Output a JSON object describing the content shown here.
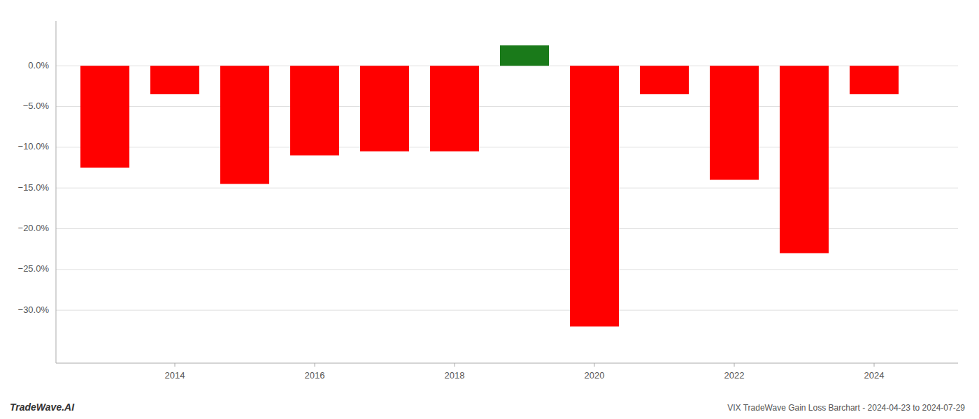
{
  "chart_data": {
    "type": "bar",
    "title": "VIX TradeWave Gain Loss Barchart - 2024-04-23 to 2024-07-29",
    "annotations": [
      "TradeWave.AI"
    ],
    "x": [
      2013,
      2014,
      2015,
      2016,
      2017,
      2018,
      2019,
      2020,
      2021,
      2022,
      2023,
      2024
    ],
    "values": [
      -0.125,
      -0.035,
      -0.145,
      -0.11,
      -0.105,
      -0.105,
      0.025,
      -0.32,
      -0.035,
      -0.14,
      -0.23,
      -0.035
    ],
    "colors": [
      "#ff0000",
      "#ff0000",
      "#ff0000",
      "#ff0000",
      "#ff0000",
      "#ff0000",
      "#1a7a1a",
      "#ff0000",
      "#ff0000",
      "#ff0000",
      "#ff0000",
      "#ff0000"
    ],
    "xlim": [
      2012.3,
      2025.2
    ],
    "xticks": [
      2014,
      2016,
      2018,
      2020,
      2022,
      2024
    ],
    "ylim": [
      -0.365,
      0.055
    ],
    "yticks": [
      {
        "value": 0.0,
        "label": "0.0%"
      },
      {
        "value": -0.05,
        "label": "−5.0%"
      },
      {
        "value": -0.1,
        "label": "−10.0%"
      },
      {
        "value": -0.15,
        "label": "−15.0%"
      },
      {
        "value": -0.2,
        "label": "−20.0%"
      },
      {
        "value": -0.25,
        "label": "−25.0%"
      },
      {
        "value": -0.3,
        "label": "−30.0%"
      }
    ],
    "grid": true
  }
}
